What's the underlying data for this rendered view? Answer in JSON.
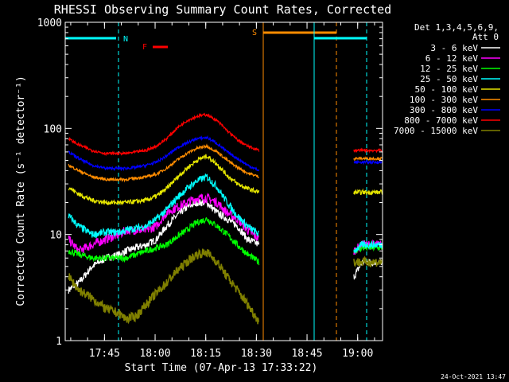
{
  "chart_data": {
    "type": "line",
    "title": "RHESSI Observing Summary Count Rates, Corrected",
    "xlabel": "Start Time (07-Apr-13 17:33:22)",
    "ylabel": "Corrected Count Rate (s⁻¹ detector⁻¹)",
    "yscale": "log",
    "ylim": [
      1,
      1000
    ],
    "y_ticks": [
      {
        "value": 1,
        "label": "1"
      },
      {
        "value": 10,
        "label": "10"
      },
      {
        "value": 100,
        "label": "100"
      },
      {
        "value": 1000,
        "label": "1000"
      }
    ],
    "xlim_minutes_after_start": [
      0,
      94
    ],
    "x_ticks": [
      {
        "minutes": 11.63,
        "label": "17:45"
      },
      {
        "minutes": 26.63,
        "label": "18:00"
      },
      {
        "minutes": 41.63,
        "label": "18:15"
      },
      {
        "minutes": 56.63,
        "label": "18:30"
      },
      {
        "minutes": 71.63,
        "label": "18:45"
      },
      {
        "minutes": 86.63,
        "label": "19:00"
      }
    ],
    "legend_header": [
      "Det 1,3,4,5,6,9,",
      "Att 0"
    ],
    "legend_position": "right",
    "markers": {
      "night_label": "N",
      "flare_label": "F",
      "saa_label": "S"
    },
    "timestamp": "24-Oct-2021 13:47",
    "series": [
      {
        "name": "3 - 6 keV",
        "color": "#ffffff",
        "segments": [
          {
            "x": [
              1,
              4,
              8,
              12,
              16,
              18,
              21,
              24,
              27,
              30,
              33,
              36,
              39,
              42,
              45,
              48,
              51,
              54,
              57.5
            ],
            "y": [
              3,
              3.5,
              5,
              6,
              6.5,
              7,
              7.5,
              8,
              9,
              12,
              15,
              18,
              20,
              20,
              16,
              14,
              12,
              9,
              8
            ]
          },
          {
            "x": [
              85.5,
              88,
              91,
              94
            ],
            "y": [
              4,
              5.5,
              5.5,
              5.5
            ]
          }
        ]
      },
      {
        "name": "6 - 12 keV",
        "color": "#ff00ff",
        "segments": [
          {
            "x": [
              1,
              4,
              8,
              12,
              16,
              18,
              21,
              24,
              27,
              30,
              33,
              36,
              39,
              42,
              45,
              48,
              51,
              54,
              57.5
            ],
            "y": [
              9,
              7,
              8,
              9,
              10,
              11,
              11,
              11,
              12,
              16,
              18,
              20,
              22,
              22,
              20,
              16,
              14,
              11,
              9
            ]
          },
          {
            "x": [
              85.5,
              88,
              91,
              94
            ],
            "y": [
              7,
              8,
              8,
              8
            ]
          }
        ]
      },
      {
        "name": "12 - 25 keV",
        "color": "#00ff00",
        "segments": [
          {
            "x": [
              1,
              4,
              8,
              12,
              16,
              18,
              21,
              24,
              27,
              30,
              33,
              36,
              39,
              42,
              45,
              48,
              51,
              54,
              57.5
            ],
            "y": [
              7,
              6.5,
              6,
              6,
              6,
              6,
              6.5,
              7,
              7.5,
              8,
              9.5,
              11,
              13,
              14,
              12,
              10,
              8,
              6.5,
              5.5
            ]
          },
          {
            "x": [
              85.5,
              88,
              91,
              94
            ],
            "y": [
              7,
              7.5,
              7.5,
              7.5
            ]
          }
        ]
      },
      {
        "name": "25 - 50 keV",
        "color": "#00ffff",
        "segments": [
          {
            "x": [
              1,
              4,
              8,
              12,
              16,
              18,
              21,
              24,
              27,
              30,
              33,
              36,
              39,
              42,
              45,
              48,
              51,
              54,
              57.5
            ],
            "y": [
              15,
              12,
              10,
              10.5,
              10.5,
              11,
              11.5,
              12,
              14,
              17,
              22,
              27,
              32,
              35,
              28,
              20,
              15,
              12,
              10
            ]
          },
          {
            "x": [
              85.5,
              88,
              91,
              94
            ],
            "y": [
              7,
              8,
              8,
              8
            ]
          }
        ]
      },
      {
        "name": "50 - 100 keV",
        "color": "#e6e600",
        "segments": [
          {
            "x": [
              1,
              4,
              8,
              12,
              16,
              18,
              21,
              24,
              27,
              30,
              33,
              36,
              39,
              42,
              45,
              48,
              51,
              54,
              57.5
            ],
            "y": [
              28,
              24,
              21,
              20,
              20,
              20,
              20.5,
              21,
              23,
              27,
              34,
              42,
              50,
              55,
              46,
              36,
              30,
              27,
              25
            ]
          },
          {
            "x": [
              85.5,
              88,
              91,
              94
            ],
            "y": [
              25,
              25,
              25,
              25
            ]
          }
        ]
      },
      {
        "name": "100 - 300 keV",
        "color": "#ff8c00",
        "segments": [
          {
            "x": [
              1,
              4,
              8,
              12,
              16,
              18,
              21,
              24,
              27,
              30,
              33,
              36,
              39,
              42,
              45,
              48,
              51,
              54,
              57.5
            ],
            "y": [
              45,
              40,
              35,
              33,
              33,
              33,
              34,
              35,
              37,
              42,
              50,
              58,
              65,
              68,
              60,
              50,
              43,
              38,
              35
            ]
          },
          {
            "x": [
              85.5,
              88,
              91,
              94
            ],
            "y": [
              52,
              52,
              52,
              52
            ]
          }
        ]
      },
      {
        "name": "300 - 800 keV",
        "color": "#0000ff",
        "segments": [
          {
            "x": [
              1,
              4,
              8,
              12,
              16,
              18,
              21,
              24,
              27,
              30,
              33,
              36,
              39,
              42,
              45,
              48,
              51,
              54,
              57.5
            ],
            "y": [
              60,
              52,
              45,
              42,
              42,
              42,
              43,
              45,
              48,
              55,
              65,
              73,
              80,
              82,
              72,
              60,
              52,
              45,
              40
            ]
          },
          {
            "x": [
              85.5,
              88,
              91,
              94
            ],
            "y": [
              48,
              48,
              48,
              48
            ]
          }
        ]
      },
      {
        "name": "800 - 7000 keV",
        "color": "#ff0000",
        "segments": [
          {
            "x": [
              1,
              4,
              8,
              12,
              16,
              18,
              21,
              24,
              27,
              30,
              33,
              36,
              39,
              42,
              45,
              48,
              51,
              54,
              57.5
            ],
            "y": [
              80,
              70,
              62,
              58,
              58,
              58,
              60,
              62,
              68,
              80,
              100,
              118,
              130,
              135,
              118,
              95,
              78,
              68,
              62
            ]
          },
          {
            "x": [
              85.5,
              88,
              91,
              94
            ],
            "y": [
              62,
              62,
              62,
              62
            ]
          }
        ]
      },
      {
        "name": "7000 - 15000 keV",
        "color": "#808000",
        "segments": [
          {
            "x": [
              1,
              4,
              8,
              12,
              16,
              18,
              21,
              24,
              27,
              30,
              33,
              36,
              39,
              42,
              45,
              48,
              51,
              54,
              57.5
            ],
            "y": [
              4,
              3,
              2.5,
              2,
              1.8,
              1.6,
              1.7,
              2.2,
              2.8,
              3.5,
              4.5,
              5.5,
              6.5,
              6.8,
              5.5,
              4,
              3,
              2.2,
              1.5
            ]
          },
          {
            "x": [
              85.5,
              88,
              91,
              94
            ],
            "y": [
              5.5,
              5.5,
              5.5,
              5.5
            ]
          }
        ]
      }
    ]
  }
}
